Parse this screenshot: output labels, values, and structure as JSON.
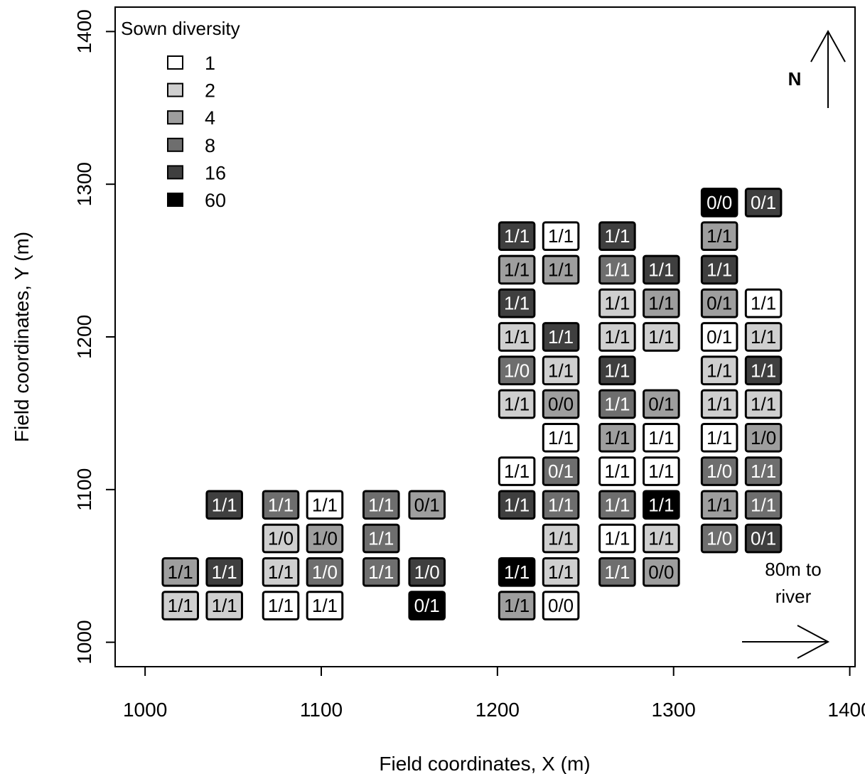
{
  "chart_data": {
    "type": "heatmap",
    "xlabel": "Field coordinates, X (m)",
    "ylabel": "Field coordinates, Y (m)",
    "xlim": [
      983,
      1403
    ],
    "ylim": [
      984,
      1416
    ],
    "xticks": [
      1000,
      1100,
      1200,
      1300,
      1400
    ],
    "yticks": [
      1000,
      1100,
      1200,
      1300,
      1400
    ],
    "cell_size_m": [
      20,
      18
    ],
    "legend": {
      "title": "Sown diversity",
      "position": "top-left",
      "levels": [
        {
          "value": "1",
          "color": "#ffffff"
        },
        {
          "value": "2",
          "color": "#cfcfcf"
        },
        {
          "value": "4",
          "color": "#9e9e9e"
        },
        {
          "value": "8",
          "color": "#6e6e6e"
        },
        {
          "value": "16",
          "color": "#3f3f3f"
        },
        {
          "value": "60",
          "color": "#000000"
        }
      ]
    },
    "annotations": {
      "north_label": "N",
      "river_label_line1": "80m to",
      "river_label_line2": "river"
    },
    "plots": [
      {
        "x": 1020,
        "y": 1024,
        "diversity": 2,
        "label": "1/1"
      },
      {
        "x": 1045,
        "y": 1024,
        "diversity": 2,
        "label": "1/1"
      },
      {
        "x": 1077,
        "y": 1024,
        "diversity": 1,
        "label": "1/1"
      },
      {
        "x": 1102,
        "y": 1024,
        "diversity": 1,
        "label": "1/1"
      },
      {
        "x": 1160,
        "y": 1024,
        "diversity": 60,
        "label": "0/1"
      },
      {
        "x": 1211,
        "y": 1024,
        "diversity": 4,
        "label": "1/1"
      },
      {
        "x": 1236,
        "y": 1024,
        "diversity": 1,
        "label": "0/0"
      },
      {
        "x": 1020,
        "y": 1046,
        "diversity": 4,
        "label": "1/1"
      },
      {
        "x": 1045,
        "y": 1046,
        "diversity": 16,
        "label": "1/1"
      },
      {
        "x": 1077,
        "y": 1046,
        "diversity": 2,
        "label": "1/1"
      },
      {
        "x": 1102,
        "y": 1046,
        "diversity": 8,
        "label": "1/0"
      },
      {
        "x": 1134,
        "y": 1046,
        "diversity": 8,
        "label": "1/1"
      },
      {
        "x": 1160,
        "y": 1046,
        "diversity": 16,
        "label": "1/0"
      },
      {
        "x": 1211,
        "y": 1046,
        "diversity": 60,
        "label": "1/1"
      },
      {
        "x": 1236,
        "y": 1046,
        "diversity": 2,
        "label": "1/1"
      },
      {
        "x": 1268,
        "y": 1046,
        "diversity": 8,
        "label": "1/1"
      },
      {
        "x": 1293,
        "y": 1046,
        "diversity": 4,
        "label": "0/0"
      },
      {
        "x": 1077,
        "y": 1068,
        "diversity": 2,
        "label": "1/0"
      },
      {
        "x": 1102,
        "y": 1068,
        "diversity": 4,
        "label": "1/0"
      },
      {
        "x": 1134,
        "y": 1068,
        "diversity": 8,
        "label": "1/1"
      },
      {
        "x": 1236,
        "y": 1068,
        "diversity": 2,
        "label": "1/1"
      },
      {
        "x": 1268,
        "y": 1068,
        "diversity": 1,
        "label": "1/1"
      },
      {
        "x": 1293,
        "y": 1068,
        "diversity": 2,
        "label": "1/1"
      },
      {
        "x": 1326,
        "y": 1068,
        "diversity": 8,
        "label": "1/0"
      },
      {
        "x": 1351,
        "y": 1068,
        "diversity": 16,
        "label": "0/1"
      },
      {
        "x": 1045,
        "y": 1090,
        "diversity": 16,
        "label": "1/1"
      },
      {
        "x": 1077,
        "y": 1090,
        "diversity": 8,
        "label": "1/1"
      },
      {
        "x": 1102,
        "y": 1090,
        "diversity": 1,
        "label": "1/1"
      },
      {
        "x": 1134,
        "y": 1090,
        "diversity": 8,
        "label": "1/1"
      },
      {
        "x": 1160,
        "y": 1090,
        "diversity": 4,
        "label": "0/1"
      },
      {
        "x": 1211,
        "y": 1090,
        "diversity": 16,
        "label": "1/1"
      },
      {
        "x": 1236,
        "y": 1090,
        "diversity": 8,
        "label": "1/1"
      },
      {
        "x": 1268,
        "y": 1090,
        "diversity": 8,
        "label": "1/1"
      },
      {
        "x": 1293,
        "y": 1090,
        "diversity": 60,
        "label": "1/1"
      },
      {
        "x": 1326,
        "y": 1090,
        "diversity": 4,
        "label": "1/1"
      },
      {
        "x": 1351,
        "y": 1090,
        "diversity": 8,
        "label": "1/1"
      },
      {
        "x": 1211,
        "y": 1112,
        "diversity": 1,
        "label": "1/1"
      },
      {
        "x": 1236,
        "y": 1112,
        "diversity": 8,
        "label": "0/1"
      },
      {
        "x": 1268,
        "y": 1112,
        "diversity": 1,
        "label": "1/1"
      },
      {
        "x": 1293,
        "y": 1112,
        "diversity": 1,
        "label": "1/1"
      },
      {
        "x": 1326,
        "y": 1112,
        "diversity": 8,
        "label": "1/0"
      },
      {
        "x": 1351,
        "y": 1112,
        "diversity": 8,
        "label": "1/1"
      },
      {
        "x": 1236,
        "y": 1134,
        "diversity": 1,
        "label": "1/1"
      },
      {
        "x": 1268,
        "y": 1134,
        "diversity": 4,
        "label": "1/1"
      },
      {
        "x": 1293,
        "y": 1134,
        "diversity": 1,
        "label": "1/1"
      },
      {
        "x": 1326,
        "y": 1134,
        "diversity": 1,
        "label": "1/1"
      },
      {
        "x": 1351,
        "y": 1134,
        "diversity": 4,
        "label": "1/0"
      },
      {
        "x": 1211,
        "y": 1156,
        "diversity": 2,
        "label": "1/1"
      },
      {
        "x": 1236,
        "y": 1156,
        "diversity": 4,
        "label": "0/0"
      },
      {
        "x": 1268,
        "y": 1156,
        "diversity": 8,
        "label": "1/1"
      },
      {
        "x": 1293,
        "y": 1156,
        "diversity": 4,
        "label": "0/1"
      },
      {
        "x": 1326,
        "y": 1156,
        "diversity": 2,
        "label": "1/1"
      },
      {
        "x": 1351,
        "y": 1156,
        "diversity": 2,
        "label": "1/1"
      },
      {
        "x": 1211,
        "y": 1178,
        "diversity": 8,
        "label": "1/0"
      },
      {
        "x": 1236,
        "y": 1178,
        "diversity": 2,
        "label": "1/1"
      },
      {
        "x": 1268,
        "y": 1178,
        "diversity": 16,
        "label": "1/1"
      },
      {
        "x": 1326,
        "y": 1178,
        "diversity": 2,
        "label": "1/1"
      },
      {
        "x": 1351,
        "y": 1178,
        "diversity": 16,
        "label": "1/1"
      },
      {
        "x": 1211,
        "y": 1200,
        "diversity": 2,
        "label": "1/1"
      },
      {
        "x": 1236,
        "y": 1200,
        "diversity": 16,
        "label": "1/1"
      },
      {
        "x": 1268,
        "y": 1200,
        "diversity": 2,
        "label": "1/1"
      },
      {
        "x": 1293,
        "y": 1200,
        "diversity": 2,
        "label": "1/1"
      },
      {
        "x": 1326,
        "y": 1200,
        "diversity": 1,
        "label": "0/1"
      },
      {
        "x": 1351,
        "y": 1200,
        "diversity": 2,
        "label": "1/1"
      },
      {
        "x": 1211,
        "y": 1222,
        "diversity": 16,
        "label": "1/1"
      },
      {
        "x": 1268,
        "y": 1222,
        "diversity": 2,
        "label": "1/1"
      },
      {
        "x": 1293,
        "y": 1222,
        "diversity": 4,
        "label": "1/1"
      },
      {
        "x": 1326,
        "y": 1222,
        "diversity": 4,
        "label": "0/1"
      },
      {
        "x": 1351,
        "y": 1222,
        "diversity": 1,
        "label": "1/1"
      },
      {
        "x": 1211,
        "y": 1244,
        "diversity": 4,
        "label": "1/1"
      },
      {
        "x": 1236,
        "y": 1244,
        "diversity": 4,
        "label": "1/1"
      },
      {
        "x": 1268,
        "y": 1244,
        "diversity": 8,
        "label": "1/1"
      },
      {
        "x": 1293,
        "y": 1244,
        "diversity": 16,
        "label": "1/1"
      },
      {
        "x": 1326,
        "y": 1244,
        "diversity": 16,
        "label": "1/1"
      },
      {
        "x": 1211,
        "y": 1266,
        "diversity": 16,
        "label": "1/1"
      },
      {
        "x": 1236,
        "y": 1266,
        "diversity": 1,
        "label": "1/1"
      },
      {
        "x": 1268,
        "y": 1266,
        "diversity": 16,
        "label": "1/1"
      },
      {
        "x": 1326,
        "y": 1266,
        "diversity": 4,
        "label": "1/1"
      },
      {
        "x": 1326,
        "y": 1288,
        "diversity": 60,
        "label": "0/0"
      },
      {
        "x": 1351,
        "y": 1288,
        "diversity": 16,
        "label": "0/1"
      }
    ]
  }
}
